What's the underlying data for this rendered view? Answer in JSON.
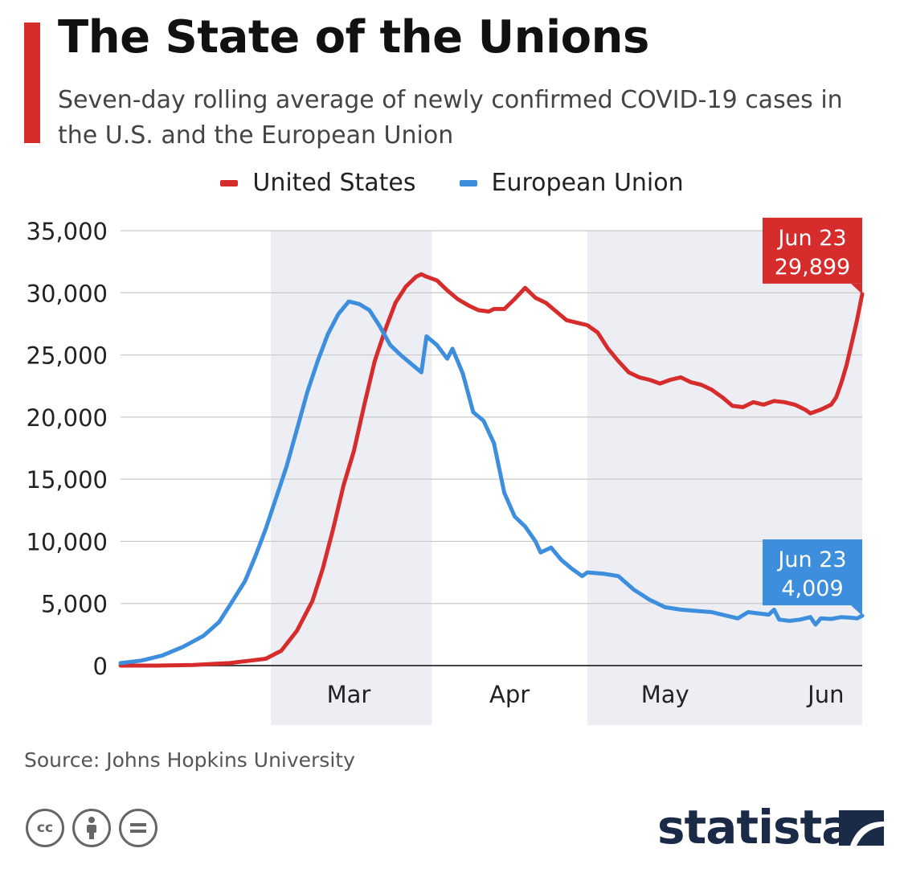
{
  "header": {
    "title": "The State of the Unions",
    "subtitle": "Seven-day rolling average of newly confirmed COVID-19 cases in the U.S. and the European Union"
  },
  "footer": {
    "source": "Source: Johns Hopkins University",
    "brand": "statista"
  },
  "colors": {
    "us": "#d62c2c",
    "eu": "#3d8fde",
    "accent": "#d62c2c",
    "band": "#eceef4",
    "grid": "#c8c8c8",
    "brand": "#1b2a47"
  },
  "chart_data": {
    "type": "line",
    "title": "The State of the Unions",
    "subtitle": "Seven-day rolling average of newly confirmed COVID-19 cases in the U.S. and the European Union",
    "xlabel": "",
    "ylabel": "",
    "x_range": [
      "2020-02-01",
      "2020-06-23"
    ],
    "ylim": [
      0,
      35000
    ],
    "y_ticks": [
      0,
      5000,
      10000,
      15000,
      20000,
      25000,
      30000,
      35000
    ],
    "y_tick_labels": [
      "0",
      "5,000",
      "10,000",
      "15,000",
      "20,000",
      "25,000",
      "30,000",
      "35,000"
    ],
    "x_ticks": [
      {
        "label": "Mar",
        "date": "2020-03-01"
      },
      {
        "label": "Apr",
        "date": "2020-04-01"
      },
      {
        "label": "May",
        "date": "2020-05-01"
      },
      {
        "label": "Jun",
        "date": "2020-06-01"
      }
    ],
    "shaded_months": [
      {
        "from": "2020-03-01",
        "to": "2020-04-01"
      },
      {
        "from": "2020-05-01",
        "to": "2020-06-23"
      }
    ],
    "grid": true,
    "legend": "top-center",
    "series": [
      {
        "name": "United States",
        "color": "#d62c2c",
        "points": [
          [
            "2020-02-01",
            0
          ],
          [
            "2020-02-08",
            0
          ],
          [
            "2020-02-15",
            50
          ],
          [
            "2020-02-22",
            200
          ],
          [
            "2020-02-26",
            400
          ],
          [
            "2020-02-29",
            550
          ],
          [
            "2020-03-03",
            1200
          ],
          [
            "2020-03-06",
            2800
          ],
          [
            "2020-03-09",
            5200
          ],
          [
            "2020-03-11",
            7800
          ],
          [
            "2020-03-13",
            11000
          ],
          [
            "2020-03-15",
            14500
          ],
          [
            "2020-03-17",
            17300
          ],
          [
            "2020-03-19",
            21000
          ],
          [
            "2020-03-21",
            24500
          ],
          [
            "2020-03-23",
            27000
          ],
          [
            "2020-03-25",
            29200
          ],
          [
            "2020-03-27",
            30500
          ],
          [
            "2020-03-29",
            31300
          ],
          [
            "2020-03-30",
            31500
          ],
          [
            "2020-03-31",
            31300
          ],
          [
            "2020-04-02",
            31000
          ],
          [
            "2020-04-04",
            30200
          ],
          [
            "2020-04-06",
            29500
          ],
          [
            "2020-04-08",
            29000
          ],
          [
            "2020-04-10",
            28600
          ],
          [
            "2020-04-12",
            28500
          ],
          [
            "2020-04-13",
            28700
          ],
          [
            "2020-04-15",
            28700
          ],
          [
            "2020-04-17",
            29500
          ],
          [
            "2020-04-19",
            30400
          ],
          [
            "2020-04-21",
            29600
          ],
          [
            "2020-04-23",
            29200
          ],
          [
            "2020-04-25",
            28500
          ],
          [
            "2020-04-27",
            27800
          ],
          [
            "2020-04-29",
            27600
          ],
          [
            "2020-05-01",
            27400
          ],
          [
            "2020-05-03",
            26800
          ],
          [
            "2020-05-05",
            25500
          ],
          [
            "2020-05-07",
            24500
          ],
          [
            "2020-05-09",
            23600
          ],
          [
            "2020-05-11",
            23200
          ],
          [
            "2020-05-13",
            23000
          ],
          [
            "2020-05-15",
            22700
          ],
          [
            "2020-05-17",
            23000
          ],
          [
            "2020-05-19",
            23200
          ],
          [
            "2020-05-21",
            22800
          ],
          [
            "2020-05-23",
            22600
          ],
          [
            "2020-05-25",
            22200
          ],
          [
            "2020-05-27",
            21600
          ],
          [
            "2020-05-29",
            20900
          ],
          [
            "2020-05-31",
            20800
          ],
          [
            "2020-06-02",
            21200
          ],
          [
            "2020-06-04",
            21000
          ],
          [
            "2020-06-06",
            21300
          ],
          [
            "2020-06-08",
            21200
          ],
          [
            "2020-06-10",
            21000
          ],
          [
            "2020-06-12",
            20600
          ],
          [
            "2020-06-13",
            20300
          ],
          [
            "2020-06-15",
            20600
          ],
          [
            "2020-06-17",
            21000
          ],
          [
            "2020-06-18",
            21600
          ],
          [
            "2020-06-19",
            22800
          ],
          [
            "2020-06-20",
            24200
          ],
          [
            "2020-06-21",
            26000
          ],
          [
            "2020-06-22",
            27800
          ],
          [
            "2020-06-23",
            29899
          ]
        ],
        "end_label": {
          "date": "Jun 23",
          "value": "29,899"
        }
      },
      {
        "name": "European Union",
        "color": "#3d8fde",
        "points": [
          [
            "2020-02-01",
            200
          ],
          [
            "2020-02-05",
            400
          ],
          [
            "2020-02-09",
            800
          ],
          [
            "2020-02-13",
            1500
          ],
          [
            "2020-02-17",
            2400
          ],
          [
            "2020-02-20",
            3500
          ],
          [
            "2020-02-22",
            4800
          ],
          [
            "2020-02-25",
            6800
          ],
          [
            "2020-02-27",
            8800
          ],
          [
            "2020-02-29",
            11000
          ],
          [
            "2020-03-02",
            13500
          ],
          [
            "2020-03-04",
            16000
          ],
          [
            "2020-03-06",
            19000
          ],
          [
            "2020-03-08",
            22000
          ],
          [
            "2020-03-10",
            24500
          ],
          [
            "2020-03-12",
            26700
          ],
          [
            "2020-03-14",
            28300
          ],
          [
            "2020-03-16",
            29300
          ],
          [
            "2020-03-18",
            29100
          ],
          [
            "2020-03-20",
            28600
          ],
          [
            "2020-03-22",
            27300
          ],
          [
            "2020-03-24",
            25800
          ],
          [
            "2020-03-26",
            25000
          ],
          [
            "2020-03-28",
            24300
          ],
          [
            "2020-03-30",
            23600
          ],
          [
            "2020-03-31",
            26500
          ],
          [
            "2020-04-02",
            25800
          ],
          [
            "2020-04-04",
            24700
          ],
          [
            "2020-04-05",
            25500
          ],
          [
            "2020-04-07",
            23500
          ],
          [
            "2020-04-09",
            20400
          ],
          [
            "2020-04-11",
            19700
          ],
          [
            "2020-04-13",
            17900
          ],
          [
            "2020-04-15",
            13900
          ],
          [
            "2020-04-17",
            12000
          ],
          [
            "2020-04-19",
            11200
          ],
          [
            "2020-04-21",
            10000
          ],
          [
            "2020-04-22",
            9100
          ],
          [
            "2020-04-24",
            9500
          ],
          [
            "2020-04-26",
            8500
          ],
          [
            "2020-04-28",
            7800
          ],
          [
            "2020-04-30",
            7200
          ],
          [
            "2020-05-01",
            7500
          ],
          [
            "2020-05-04",
            7400
          ],
          [
            "2020-05-07",
            7200
          ],
          [
            "2020-05-10",
            6100
          ],
          [
            "2020-05-13",
            5300
          ],
          [
            "2020-05-16",
            4700
          ],
          [
            "2020-05-19",
            4500
          ],
          [
            "2020-05-22",
            4400
          ],
          [
            "2020-05-25",
            4300
          ],
          [
            "2020-05-28",
            4000
          ],
          [
            "2020-05-30",
            3800
          ],
          [
            "2020-06-01",
            4300
          ],
          [
            "2020-06-03",
            4200
          ],
          [
            "2020-06-05",
            4100
          ],
          [
            "2020-06-06",
            4500
          ],
          [
            "2020-06-07",
            3700
          ],
          [
            "2020-06-09",
            3600
          ],
          [
            "2020-06-11",
            3700
          ],
          [
            "2020-06-13",
            3900
          ],
          [
            "2020-06-14",
            3300
          ],
          [
            "2020-06-15",
            3800
          ],
          [
            "2020-06-17",
            3750
          ],
          [
            "2020-06-19",
            3900
          ],
          [
            "2020-06-21",
            3850
          ],
          [
            "2020-06-22",
            3800
          ],
          [
            "2020-06-23",
            4009
          ]
        ],
        "end_label": {
          "date": "Jun 23",
          "value": "4,009"
        }
      }
    ]
  }
}
